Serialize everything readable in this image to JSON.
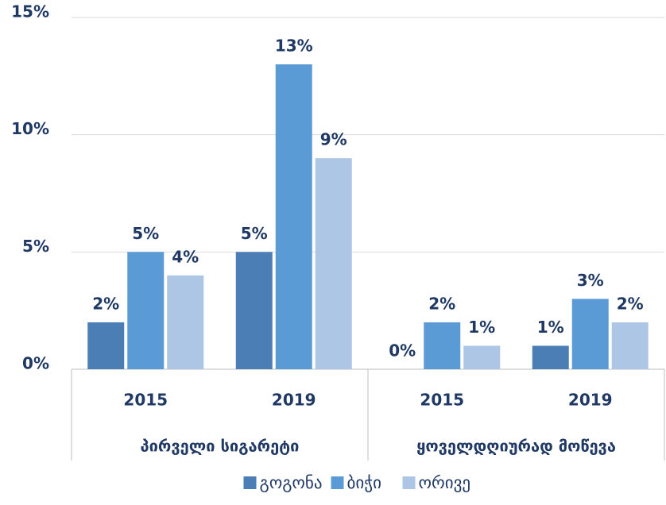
{
  "chart_data": {
    "type": "bar",
    "categories": [
      "2015",
      "2019",
      "2015",
      "2019"
    ],
    "groups": [
      {
        "label": "პირველი სიგარეტი",
        "categories": [
          "2015",
          "2019"
        ]
      },
      {
        "label": "ყოველდღიურად მოწევა",
        "categories": [
          "2015",
          "2019"
        ]
      }
    ],
    "series": [
      {
        "name": "გოგონა",
        "color": "#4a7eb4",
        "values": [
          2,
          5,
          0,
          1
        ],
        "value_labels": [
          "2%",
          "5%",
          "0%",
          "1%"
        ]
      },
      {
        "name": "ბიჭი",
        "color": "#5b9bd5",
        "values": [
          5,
          13,
          2,
          3
        ],
        "value_labels": [
          "5%",
          "13%",
          "2%",
          "3%"
        ]
      },
      {
        "name": "ორივე",
        "color": "#adc6e6",
        "values": [
          4,
          9,
          1,
          2
        ],
        "value_labels": [
          "4%",
          "9%",
          "1%",
          "2%"
        ]
      }
    ],
    "ylim": [
      0,
      15
    ],
    "yticks": [
      {
        "value": 0,
        "label": "0%"
      },
      {
        "value": 5,
        "label": "5%"
      },
      {
        "value": 10,
        "label": "10%"
      },
      {
        "value": 15,
        "label": "15%"
      }
    ],
    "grid": true,
    "legend": "bottom"
  }
}
